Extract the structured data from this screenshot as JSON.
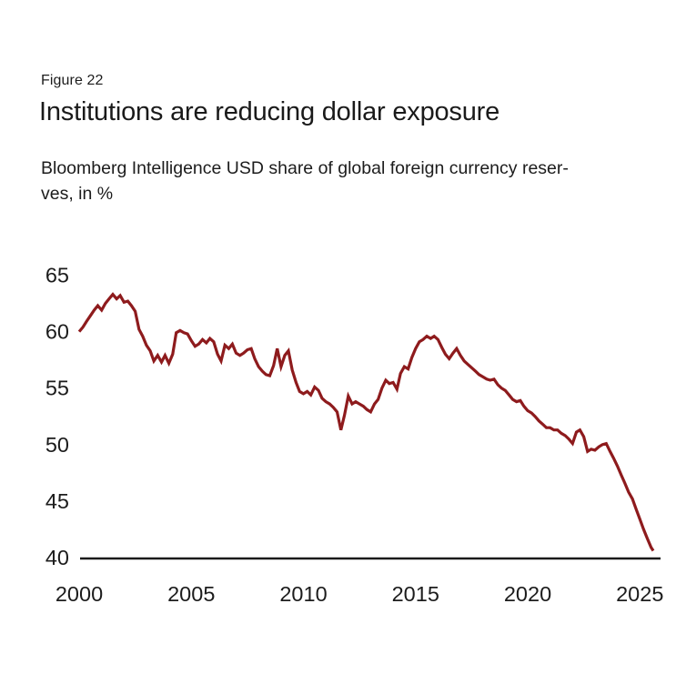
{
  "header": {
    "figure_label": "Figure 22",
    "title": "Institutions are reducing dollar exposure",
    "subtitle_line1": "Bloomberg Intelligence USD share of global foreign currency reser-",
    "subtitle_line2": "ves, in %"
  },
  "colors": {
    "background": "#ffffff",
    "text": "#1c1c1c",
    "axis": "#1a1a1a",
    "line": "#8e1b1d"
  },
  "chart_data": {
    "type": "line",
    "title": "Institutions are reducing dollar exposure",
    "subtitle": "Bloomberg Intelligence USD share of global foreign currency reserves, in %",
    "xlabel": "",
    "ylabel": "",
    "xticks": [
      2000,
      2005,
      2010,
      2015,
      2020,
      2025
    ],
    "yticks": [
      40,
      45,
      50,
      55,
      60,
      65
    ],
    "xlim": [
      2000,
      2025.9
    ],
    "ylim": [
      40,
      66.5
    ],
    "grid": false,
    "legend": "none",
    "line_color": "#8e1b1d",
    "series": [
      {
        "name": "USD share of global foreign currency reserves (%)",
        "points": [
          [
            2000.0,
            60.0
          ],
          [
            2000.17,
            60.4
          ],
          [
            2000.33,
            60.9
          ],
          [
            2000.5,
            61.4
          ],
          [
            2000.67,
            61.9
          ],
          [
            2000.83,
            62.3
          ],
          [
            2001.0,
            61.9
          ],
          [
            2001.17,
            62.5
          ],
          [
            2001.33,
            62.9
          ],
          [
            2001.5,
            63.3
          ],
          [
            2001.67,
            62.9
          ],
          [
            2001.83,
            63.2
          ],
          [
            2002.0,
            62.6
          ],
          [
            2002.17,
            62.7
          ],
          [
            2002.33,
            62.3
          ],
          [
            2002.5,
            61.8
          ],
          [
            2002.67,
            60.2
          ],
          [
            2002.83,
            59.6
          ],
          [
            2003.0,
            58.8
          ],
          [
            2003.17,
            58.3
          ],
          [
            2003.33,
            57.4
          ],
          [
            2003.5,
            57.9
          ],
          [
            2003.67,
            57.3
          ],
          [
            2003.83,
            57.9
          ],
          [
            2004.0,
            57.2
          ],
          [
            2004.17,
            58.0
          ],
          [
            2004.33,
            59.9
          ],
          [
            2004.5,
            60.1
          ],
          [
            2004.67,
            59.9
          ],
          [
            2004.83,
            59.8
          ],
          [
            2005.0,
            59.2
          ],
          [
            2005.17,
            58.7
          ],
          [
            2005.33,
            58.9
          ],
          [
            2005.5,
            59.3
          ],
          [
            2005.67,
            59.0
          ],
          [
            2005.83,
            59.4
          ],
          [
            2006.0,
            59.1
          ],
          [
            2006.17,
            58.0
          ],
          [
            2006.33,
            57.4
          ],
          [
            2006.5,
            58.8
          ],
          [
            2006.67,
            58.5
          ],
          [
            2006.83,
            58.9
          ],
          [
            2007.0,
            58.1
          ],
          [
            2007.17,
            57.9
          ],
          [
            2007.33,
            58.1
          ],
          [
            2007.5,
            58.4
          ],
          [
            2007.67,
            58.5
          ],
          [
            2007.83,
            57.6
          ],
          [
            2008.0,
            56.9
          ],
          [
            2008.17,
            56.5
          ],
          [
            2008.33,
            56.2
          ],
          [
            2008.5,
            56.1
          ],
          [
            2008.67,
            57.0
          ],
          [
            2008.83,
            58.5
          ],
          [
            2009.0,
            56.9
          ],
          [
            2009.17,
            57.9
          ],
          [
            2009.33,
            58.3
          ],
          [
            2009.5,
            56.6
          ],
          [
            2009.67,
            55.5
          ],
          [
            2009.83,
            54.7
          ],
          [
            2010.0,
            54.5
          ],
          [
            2010.17,
            54.7
          ],
          [
            2010.33,
            54.4
          ],
          [
            2010.5,
            55.1
          ],
          [
            2010.67,
            54.8
          ],
          [
            2010.83,
            54.1
          ],
          [
            2011.0,
            53.8
          ],
          [
            2011.17,
            53.6
          ],
          [
            2011.33,
            53.3
          ],
          [
            2011.5,
            52.9
          ],
          [
            2011.67,
            51.3
          ],
          [
            2011.83,
            52.6
          ],
          [
            2012.0,
            54.3
          ],
          [
            2012.17,
            53.6
          ],
          [
            2012.33,
            53.8
          ],
          [
            2012.5,
            53.6
          ],
          [
            2012.67,
            53.4
          ],
          [
            2012.83,
            53.1
          ],
          [
            2013.0,
            52.9
          ],
          [
            2013.17,
            53.6
          ],
          [
            2013.33,
            54.0
          ],
          [
            2013.5,
            55.0
          ],
          [
            2013.67,
            55.7
          ],
          [
            2013.83,
            55.4
          ],
          [
            2014.0,
            55.5
          ],
          [
            2014.17,
            54.9
          ],
          [
            2014.33,
            56.3
          ],
          [
            2014.5,
            56.9
          ],
          [
            2014.67,
            56.7
          ],
          [
            2014.83,
            57.7
          ],
          [
            2015.0,
            58.5
          ],
          [
            2015.17,
            59.1
          ],
          [
            2015.33,
            59.3
          ],
          [
            2015.5,
            59.6
          ],
          [
            2015.67,
            59.4
          ],
          [
            2015.83,
            59.6
          ],
          [
            2016.0,
            59.3
          ],
          [
            2016.17,
            58.6
          ],
          [
            2016.33,
            58.0
          ],
          [
            2016.5,
            57.6
          ],
          [
            2016.67,
            58.1
          ],
          [
            2016.83,
            58.5
          ],
          [
            2017.0,
            57.9
          ],
          [
            2017.17,
            57.4
          ],
          [
            2017.33,
            57.1
          ],
          [
            2017.5,
            56.8
          ],
          [
            2017.67,
            56.5
          ],
          [
            2017.83,
            56.2
          ],
          [
            2018.0,
            56.0
          ],
          [
            2018.17,
            55.8
          ],
          [
            2018.33,
            55.7
          ],
          [
            2018.5,
            55.8
          ],
          [
            2018.67,
            55.3
          ],
          [
            2018.83,
            55.0
          ],
          [
            2019.0,
            54.8
          ],
          [
            2019.17,
            54.4
          ],
          [
            2019.33,
            54.0
          ],
          [
            2019.5,
            53.8
          ],
          [
            2019.67,
            53.9
          ],
          [
            2019.83,
            53.4
          ],
          [
            2020.0,
            53.0
          ],
          [
            2020.17,
            52.8
          ],
          [
            2020.33,
            52.5
          ],
          [
            2020.5,
            52.1
          ],
          [
            2020.67,
            51.8
          ],
          [
            2020.83,
            51.5
          ],
          [
            2021.0,
            51.5
          ],
          [
            2021.17,
            51.3
          ],
          [
            2021.33,
            51.3
          ],
          [
            2021.5,
            51.0
          ],
          [
            2021.67,
            50.8
          ],
          [
            2021.83,
            50.5
          ],
          [
            2022.0,
            50.1
          ],
          [
            2022.17,
            51.1
          ],
          [
            2022.33,
            51.3
          ],
          [
            2022.5,
            50.7
          ],
          [
            2022.67,
            49.4
          ],
          [
            2022.83,
            49.6
          ],
          [
            2023.0,
            49.5
          ],
          [
            2023.17,
            49.8
          ],
          [
            2023.33,
            50.0
          ],
          [
            2023.5,
            50.1
          ],
          [
            2023.67,
            49.4
          ],
          [
            2023.83,
            48.8
          ],
          [
            2024.0,
            48.1
          ],
          [
            2024.17,
            47.3
          ],
          [
            2024.33,
            46.6
          ],
          [
            2024.5,
            45.8
          ],
          [
            2024.67,
            45.2
          ],
          [
            2024.83,
            44.3
          ],
          [
            2025.0,
            43.4
          ],
          [
            2025.17,
            42.5
          ],
          [
            2025.33,
            41.7
          ],
          [
            2025.5,
            40.9
          ],
          [
            2025.6,
            40.6
          ]
        ]
      }
    ]
  }
}
